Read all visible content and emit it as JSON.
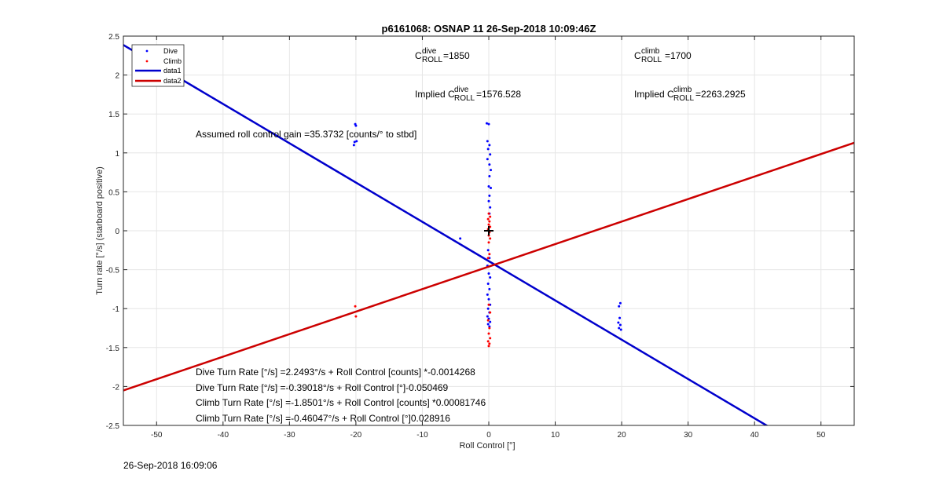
{
  "chart_data": {
    "type": "scatter",
    "title": "p6161068: OSNAP 11 26-Sep-2018 10:09:46Z",
    "xlabel": "Roll Control [°]",
    "ylabel": "Turn rate [°/s] (starboard positive)",
    "xlim": [
      -55,
      55
    ],
    "ylim": [
      -2.5,
      2.5
    ],
    "xticks": [
      -50,
      -40,
      -30,
      -20,
      -10,
      0,
      10,
      20,
      30,
      40,
      50
    ],
    "yticks": [
      -2.5,
      -2,
      -1.5,
      -1,
      -0.5,
      0,
      0.5,
      1,
      1.5,
      2,
      2.5
    ],
    "grid": true,
    "legend": {
      "placement": "top-left",
      "entries": [
        {
          "label": "Dive",
          "color": "#0000ff",
          "marker": "dot"
        },
        {
          "label": "Climb",
          "color": "#ff0000",
          "marker": "dot"
        },
        {
          "label": "data1",
          "color": "#0000cc",
          "marker": "line"
        },
        {
          "label": "data2",
          "color": "#cc0000",
          "marker": "line"
        }
      ]
    },
    "colors": {
      "dive": "#0000ff",
      "climb": "#ff0000",
      "data1": "#0000cc",
      "data2": "#cc0000"
    },
    "series": [
      {
        "name": "Dive",
        "kind": "points",
        "points": [
          [
            -20.1,
            1.37
          ],
          [
            -20.0,
            1.35
          ],
          [
            -20.2,
            1.14
          ],
          [
            -20.3,
            1.1
          ],
          [
            -19.9,
            1.15
          ],
          [
            -4.3,
            -0.1
          ],
          [
            -0.3,
            1.38
          ],
          [
            0.0,
            1.37
          ],
          [
            -0.2,
            1.15
          ],
          [
            0.1,
            1.1
          ],
          [
            -0.1,
            1.05
          ],
          [
            0.2,
            0.98
          ],
          [
            -0.2,
            0.92
          ],
          [
            0.1,
            0.85
          ],
          [
            0.3,
            0.78
          ],
          [
            0.1,
            0.7
          ],
          [
            0.0,
            0.57
          ],
          [
            0.3,
            0.55
          ],
          [
            0.1,
            0.45
          ],
          [
            0.0,
            0.38
          ],
          [
            0.2,
            0.3
          ],
          [
            0.1,
            0.22
          ],
          [
            -0.1,
            -0.25
          ],
          [
            0.1,
            -0.35
          ],
          [
            -0.2,
            -0.45
          ],
          [
            0.0,
            -0.55
          ],
          [
            0.2,
            -0.6
          ],
          [
            -0.1,
            -0.68
          ],
          [
            0.1,
            -0.75
          ],
          [
            -0.2,
            -0.82
          ],
          [
            0.0,
            -0.88
          ],
          [
            0.2,
            -0.95
          ],
          [
            -0.1,
            -1.0
          ],
          [
            0.1,
            -1.05
          ],
          [
            -0.2,
            -1.1
          ],
          [
            0.0,
            -1.13
          ],
          [
            0.2,
            -1.17
          ],
          [
            -0.1,
            -1.2
          ],
          [
            0.1,
            -1.23
          ],
          [
            19.8,
            -0.93
          ],
          [
            19.6,
            -0.97
          ],
          [
            19.7,
            -1.12
          ],
          [
            19.5,
            -1.18
          ],
          [
            19.8,
            -1.21
          ],
          [
            19.6,
            -1.25
          ],
          [
            19.9,
            -1.27
          ]
        ]
      },
      {
        "name": "Climb",
        "kind": "points",
        "points": [
          [
            -20.1,
            -0.97
          ],
          [
            -20.0,
            -1.1
          ],
          [
            0.0,
            0.22
          ],
          [
            0.2,
            0.18
          ],
          [
            -0.1,
            0.15
          ],
          [
            0.1,
            0.12
          ],
          [
            0.0,
            0.08
          ],
          [
            0.2,
            0.05
          ],
          [
            -0.1,
            0.02
          ],
          [
            0.1,
            -0.02
          ],
          [
            0.0,
            -0.06
          ],
          [
            0.2,
            -0.1
          ],
          [
            0.0,
            -0.15
          ],
          [
            0.1,
            -0.3
          ],
          [
            -0.1,
            -0.35
          ],
          [
            0.0,
            -0.95
          ],
          [
            0.2,
            -1.05
          ],
          [
            -0.1,
            -1.15
          ],
          [
            0.1,
            -1.25
          ],
          [
            0.0,
            -1.32
          ],
          [
            0.2,
            -1.38
          ],
          [
            -0.1,
            -1.42
          ],
          [
            0.1,
            -1.45
          ],
          [
            0.0,
            -1.48
          ]
        ]
      },
      {
        "name": "data1",
        "kind": "line",
        "intercept": -0.39018,
        "slope": -0.050469
      },
      {
        "name": "data2",
        "kind": "line",
        "intercept": -0.46047,
        "slope": 0.028916
      }
    ],
    "annotations": {
      "c_dive_prefix": "C",
      "c_dive_sup": "dive",
      "c_dive_sub": "ROLL",
      "c_dive_value": "=1850",
      "c_climb_prefix": "C",
      "c_climb_sup": "climb",
      "c_climb_sub": "ROLL",
      "c_climb_value": "=1700",
      "implied_dive_prefix": "Implied C",
      "implied_dive_sup": "dive",
      "implied_dive_sub": "ROLL",
      "implied_dive_value": "=1576.528",
      "implied_climb_prefix": "Implied C",
      "implied_climb_sup": "climb",
      "implied_climb_sub": "ROLL",
      "implied_climb_value": "=2263.2925",
      "gain": "Assumed roll control gain =35.3732 [counts/° to stbd]",
      "eq1": "Dive Turn Rate [°/s] =2.2493°/s + Roll Control [counts] *-0.0014268",
      "eq2": "Dive Turn Rate [°/s] =-0.39018°/s + Roll Control [°]-0.050469",
      "eq3": "Climb Turn Rate [°/s] =-1.8501°/s + Roll Control [counts] *0.00081746",
      "eq4": "Climb Turn Rate [°/s] =-0.46047°/s + Roll Control [°]0.028916"
    },
    "center_marker": [
      0,
      0
    ]
  },
  "timestamp": "26-Sep-2018 16:09:06"
}
